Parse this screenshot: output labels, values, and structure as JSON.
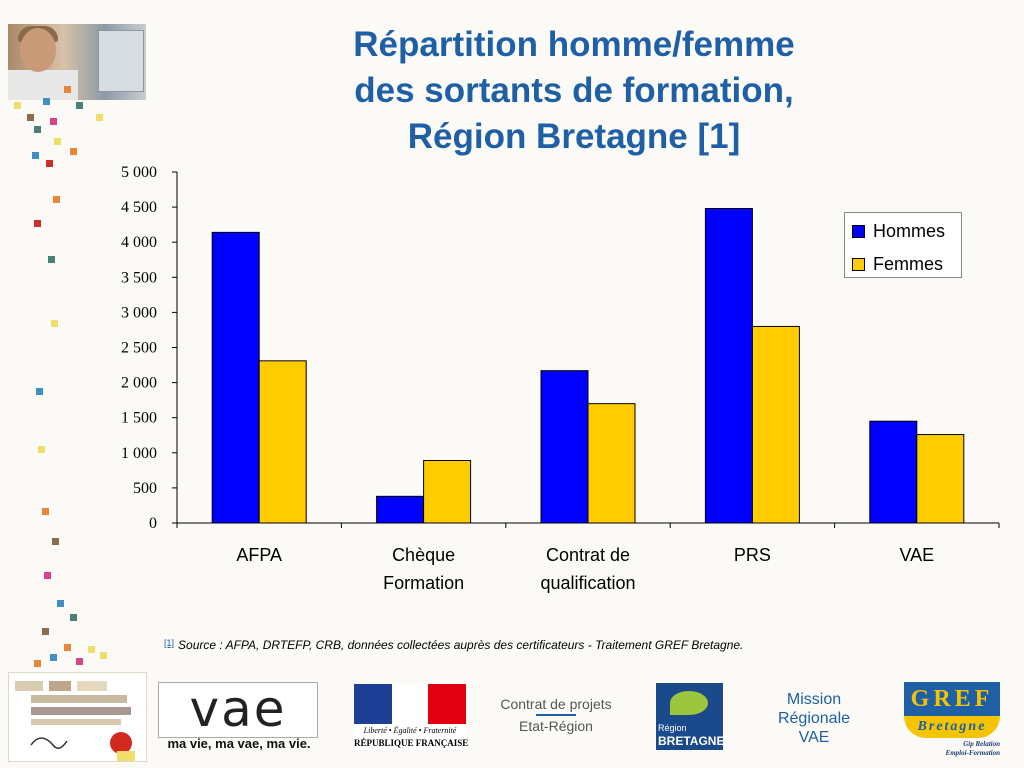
{
  "title": {
    "line1": "Répartition homme/femme",
    "line2": "des sortants de formation,",
    "line3": "Région Bretagne [1]"
  },
  "chart_data": {
    "type": "bar",
    "categories": [
      [
        "AFPA"
      ],
      [
        "Chèque",
        "Formation"
      ],
      [
        "Contrat de",
        "qualification"
      ],
      [
        "PRS"
      ],
      [
        "VAE"
      ]
    ],
    "series": [
      {
        "name": "Hommes",
        "color": "#0000ff",
        "values": [
          4140,
          380,
          2170,
          4480,
          1450
        ]
      },
      {
        "name": "Femmes",
        "color": "#ffcc00",
        "values": [
          2310,
          890,
          1700,
          2800,
          1260
        ]
      }
    ],
    "ylim": [
      0,
      5000
    ],
    "yticks": [
      0,
      500,
      1000,
      1500,
      2000,
      2500,
      3000,
      3500,
      4000,
      4500,
      5000
    ],
    "ytick_labels": [
      "0",
      "500",
      "1 000",
      "1 500",
      "2 000",
      "2 500",
      "3 000",
      "3 500",
      "4 000",
      "4 500",
      "5 000"
    ],
    "legend_position": "top-right",
    "grid": false
  },
  "footnote": {
    "ref": "[1]",
    "source": "Source : AFPA, DRTEFP, CRB, données collectées auprès des certificateurs - Traitement GREF Bretagne."
  },
  "logos": {
    "vae_word": "vae",
    "vae_tagline": "ma vie, ma vae, ma vie.",
    "rf_motto": "Liberté • Égalité • Fraternité",
    "rf_name": "RÉPUBLIQUE FRANÇAISE",
    "cp_line1": "Contrat de projets",
    "cp_line2": "Etat-Région",
    "bzh_line1": "Région",
    "bzh_line2": "BRETAGNE",
    "mission_line1": "Mission",
    "mission_line2": "Régionale",
    "mission_line3": "VAE",
    "gref_top": "GREF",
    "gref_mid": "Bretagne",
    "gref_sub1": "Gip Relation",
    "gref_sub2": "Emploi-Formation"
  }
}
